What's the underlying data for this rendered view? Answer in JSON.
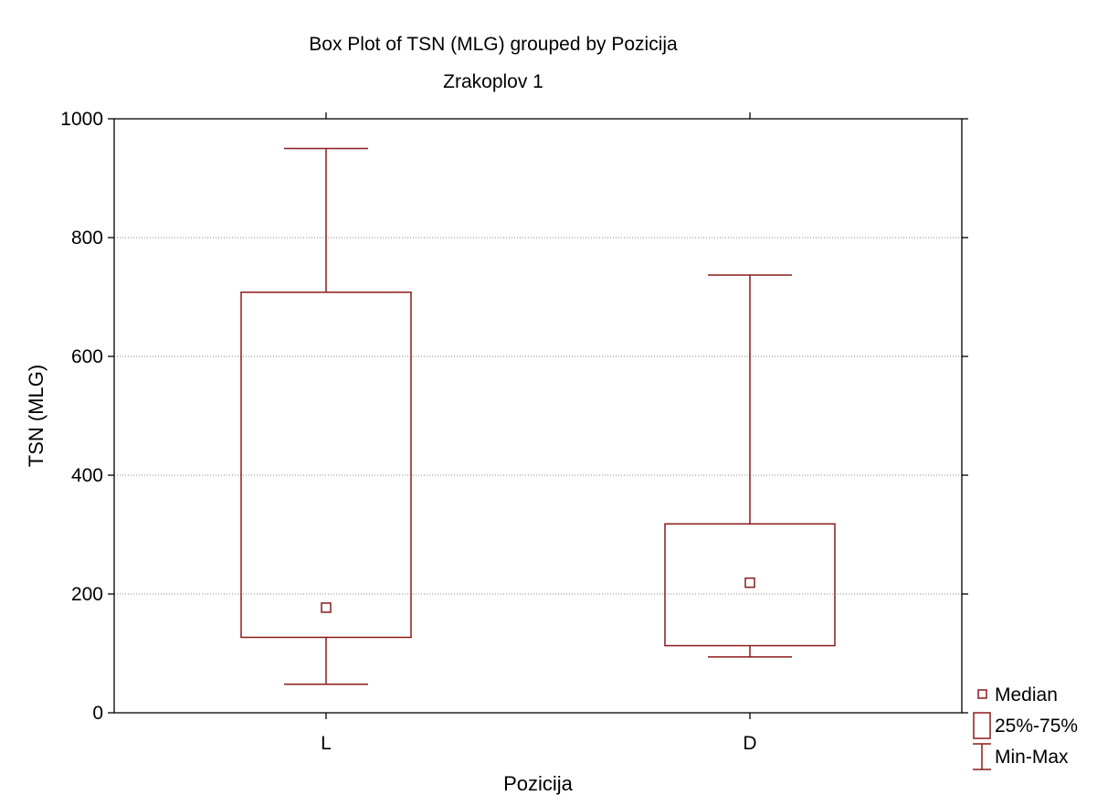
{
  "chart_data": {
    "type": "box",
    "title": "Box Plot of TSN (MLG) grouped by  Pozicija",
    "subtitle": "Zrakoplov 1",
    "xlabel": "Pozicija",
    "ylabel": "TSN (MLG)",
    "ylim": [
      0,
      1000
    ],
    "yticks": [
      0,
      200,
      400,
      600,
      800,
      1000
    ],
    "grid": true,
    "legend_position": "bottom-right",
    "color": "#8b1a1a",
    "categories": [
      "L",
      "D"
    ],
    "boxes": [
      {
        "category": "L",
        "min": 48,
        "q1": 127,
        "median": 177,
        "q3": 708,
        "max": 950
      },
      {
        "category": "D",
        "min": 94,
        "q1": 113,
        "median": 219,
        "q3": 318,
        "max": 737
      }
    ],
    "legend": [
      {
        "symbol": "median",
        "label": "Median"
      },
      {
        "symbol": "box",
        "label": "25%-75%"
      },
      {
        "symbol": "whisker",
        "label": "Min-Max"
      }
    ]
  }
}
